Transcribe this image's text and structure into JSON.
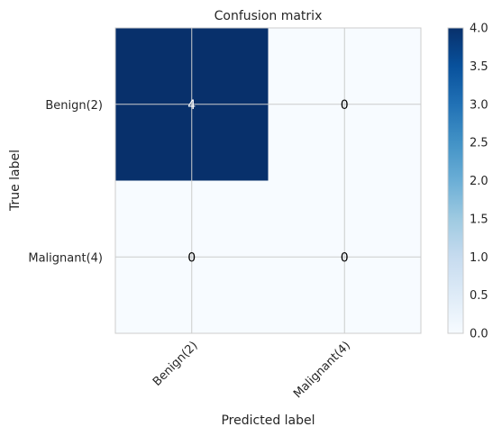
{
  "chart_data": {
    "type": "heatmap",
    "title": "Confusion matrix",
    "xlabel": "Predicted label",
    "ylabel": "True label",
    "x_categories": [
      "Benign(2)",
      "Malignant(4)"
    ],
    "y_categories": [
      "Benign(2)",
      "Malignant(4)"
    ],
    "values": [
      [
        4,
        0
      ],
      [
        0,
        0
      ]
    ],
    "cell_labels": [
      [
        "4",
        "0"
      ],
      [
        "0",
        "0"
      ]
    ],
    "colormap": "Blues",
    "colorbar": {
      "range": [
        0,
        4
      ],
      "ticks": [
        "0.0",
        "0.5",
        "1.0",
        "1.5",
        "2.0",
        "2.5",
        "3.0",
        "3.5",
        "4.0"
      ]
    },
    "grid": true,
    "colors": {
      "low": "#f7fbff",
      "high": "#08306b",
      "grid": "#cccccc",
      "frame": "#cccccc",
      "text": "#262626"
    }
  }
}
